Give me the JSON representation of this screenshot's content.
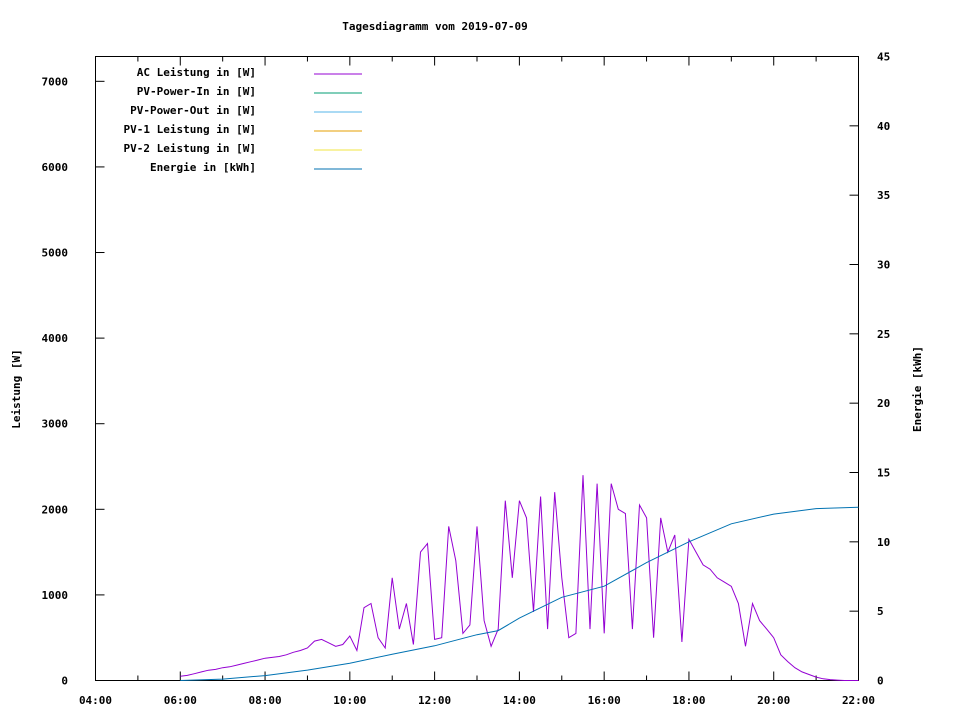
{
  "chart_data": {
    "type": "line",
    "title": "Tagesdiagramm vom 2019-07-09",
    "ylabel": "Leistung [W]",
    "y2label": "Energie [kWh]",
    "xlim": [
      "04:00",
      "22:00"
    ],
    "ylim": [
      0,
      7290
    ],
    "y2lim": [
      0,
      45
    ],
    "xticks": [
      "04:00",
      "06:00",
      "08:00",
      "10:00",
      "12:00",
      "14:00",
      "16:00",
      "18:00",
      "20:00",
      "22:00"
    ],
    "yticks": [
      0,
      1000,
      2000,
      3000,
      4000,
      5000,
      6000,
      7000
    ],
    "y2ticks": [
      0,
      5,
      10,
      15,
      20,
      25,
      30,
      35,
      40,
      45
    ],
    "grid": false,
    "legend_placement": "top-left",
    "series": [
      {
        "name": "AC Leistung in [W]",
        "color": "#9400d3",
        "axis": "y",
        "x": [
          "06:00",
          "06:10",
          "06:20",
          "06:30",
          "06:40",
          "06:50",
          "07:00",
          "07:10",
          "07:20",
          "07:30",
          "07:40",
          "07:50",
          "08:00",
          "08:10",
          "08:20",
          "08:30",
          "08:40",
          "08:50",
          "09:00",
          "09:10",
          "09:20",
          "09:30",
          "09:40",
          "09:50",
          "10:00",
          "10:10",
          "10:20",
          "10:30",
          "10:40",
          "10:50",
          "11:00",
          "11:10",
          "11:20",
          "11:30",
          "11:40",
          "11:50",
          "12:00",
          "12:10",
          "12:20",
          "12:30",
          "12:40",
          "12:50",
          "13:00",
          "13:10",
          "13:20",
          "13:30",
          "13:40",
          "13:50",
          "14:00",
          "14:10",
          "14:20",
          "14:30",
          "14:40",
          "14:50",
          "15:00",
          "15:10",
          "15:20",
          "15:30",
          "15:40",
          "15:50",
          "16:00",
          "16:10",
          "16:20",
          "16:30",
          "16:40",
          "16:50",
          "17:00",
          "17:10",
          "17:20",
          "17:30",
          "17:40",
          "17:50",
          "18:00",
          "18:10",
          "18:20",
          "18:30",
          "18:40",
          "18:50",
          "19:00",
          "19:10",
          "19:20",
          "19:30",
          "19:40",
          "19:50",
          "20:00",
          "20:10",
          "20:20",
          "20:30",
          "20:40",
          "20:50",
          "21:00",
          "21:10",
          "21:20",
          "21:30",
          "21:40",
          "21:50",
          "22:00"
        ],
        "values": [
          50,
          60,
          80,
          100,
          120,
          130,
          150,
          160,
          180,
          200,
          220,
          240,
          260,
          270,
          280,
          300,
          330,
          350,
          380,
          460,
          480,
          440,
          400,
          420,
          520,
          350,
          850,
          900,
          500,
          380,
          1200,
          600,
          900,
          420,
          1500,
          1600,
          480,
          500,
          1800,
          1400,
          550,
          650,
          1800,
          700,
          400,
          600,
          2100,
          1200,
          2100,
          1900,
          800,
          2150,
          600,
          2200,
          1200,
          500,
          550,
          2400,
          600,
          2300,
          550,
          2300,
          2000,
          1950,
          600,
          2050,
          1900,
          500,
          1900,
          1500,
          1700,
          450,
          1650,
          1500,
          1350,
          1300,
          1200,
          1150,
          1100,
          900,
          400,
          900,
          700,
          600,
          500,
          300,
          220,
          150,
          100,
          70,
          40,
          20,
          10,
          5,
          0,
          0,
          0
        ]
      },
      {
        "name": "PV-Power-In in [W]",
        "color": "#009e73",
        "axis": "y",
        "x": [],
        "values": []
      },
      {
        "name": "PV-Power-Out in [W]",
        "color": "#56b4e9",
        "axis": "y",
        "x": [],
        "values": []
      },
      {
        "name": "PV-1 Leistung in [W]",
        "color": "#e69f00",
        "axis": "y",
        "x": [],
        "values": []
      },
      {
        "name": "PV-2 Leistung in [W]",
        "color": "#f0e442",
        "axis": "y",
        "x": [],
        "values": []
      },
      {
        "name": "Energie in [kWh]",
        "color": "#0072b2",
        "axis": "y2",
        "x": [
          "06:00",
          "07:00",
          "08:00",
          "09:00",
          "10:00",
          "11:00",
          "12:00",
          "13:00",
          "13:30",
          "14:00",
          "15:00",
          "16:00",
          "17:00",
          "18:00",
          "19:00",
          "20:00",
          "21:00",
          "22:00"
        ],
        "values": [
          0,
          0.1,
          0.35,
          0.75,
          1.25,
          1.9,
          2.5,
          3.3,
          3.6,
          4.5,
          6.0,
          6.8,
          8.5,
          10.0,
          11.3,
          12.0,
          12.4,
          12.5
        ]
      }
    ]
  }
}
